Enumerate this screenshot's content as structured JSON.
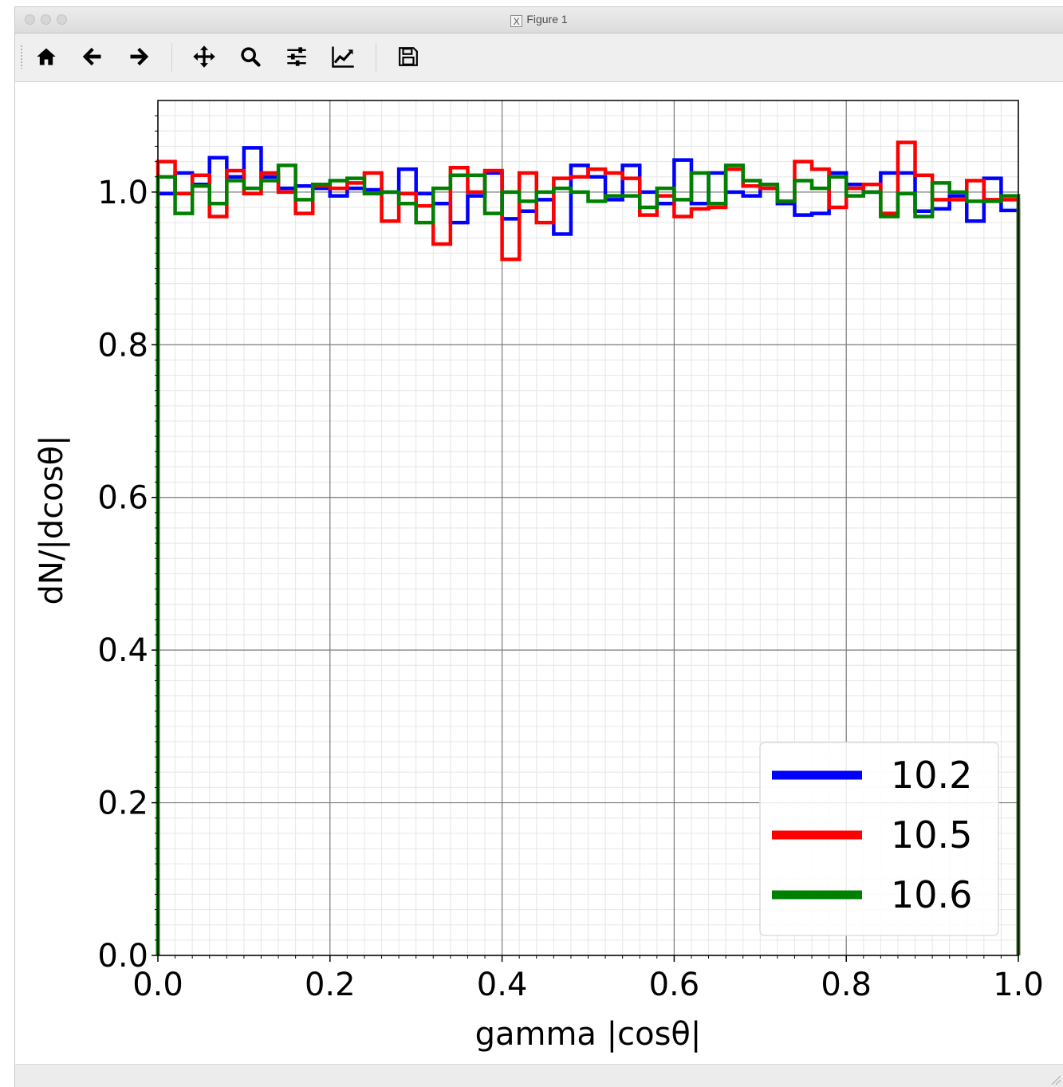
{
  "window": {
    "title": "Figure 1",
    "app_icon_glyph": "X"
  },
  "toolbar": {
    "buttons": [
      {
        "name": "home-button",
        "icon": "home-icon",
        "label": "Home"
      },
      {
        "name": "back-button",
        "icon": "arrow-left-icon",
        "label": "Back"
      },
      {
        "name": "forward-button",
        "icon": "arrow-right-icon",
        "label": "Forward"
      },
      {
        "name": "pan-button",
        "icon": "move-icon",
        "label": "Pan"
      },
      {
        "name": "zoom-button",
        "icon": "magnifier-icon",
        "label": "Zoom"
      },
      {
        "name": "subplots-button",
        "icon": "sliders-icon",
        "label": "Subplots"
      },
      {
        "name": "customize-button",
        "icon": "line-chart-icon",
        "label": "Customize"
      },
      {
        "name": "save-button",
        "icon": "floppy-disk-icon",
        "label": "Save"
      }
    ]
  },
  "chart_data": {
    "type": "line",
    "style": "step histogram",
    "title": "",
    "xlabel": "gamma |cosθ|",
    "ylabel": "dN/|dcosθ|",
    "xlim": [
      0.0,
      1.0
    ],
    "ylim": [
      0.0,
      1.12
    ],
    "xticks": [
      0.0,
      0.2,
      0.4,
      0.6,
      0.8,
      1.0
    ],
    "xtick_labels": [
      "0.0",
      "0.2",
      "0.4",
      "0.6",
      "0.8",
      "1.0"
    ],
    "yticks": [
      0.0,
      0.2,
      0.4,
      0.6,
      0.8,
      1.0
    ],
    "ytick_labels": [
      "0.0",
      "0.2",
      "0.4",
      "0.6",
      "0.8",
      "1.0"
    ],
    "grid": {
      "major": true,
      "minor": true
    },
    "legend_position": "lower-right",
    "bin_edges_start": 0.0,
    "bin_width": 0.02,
    "series": [
      {
        "name": "10.2",
        "color": "#0000ff",
        "values": [
          0.998,
          1.025,
          1.01,
          1.045,
          1.02,
          1.058,
          1.02,
          1.005,
          1.008,
          1.005,
          0.995,
          1.005,
          1.003,
          1.0,
          1.03,
          0.998,
          0.985,
          0.96,
          0.995,
          1.025,
          0.965,
          0.975,
          0.99,
          0.945,
          1.035,
          1.02,
          0.99,
          1.035,
          1.0,
          0.985,
          1.042,
          0.985,
          1.025,
          1.0,
          0.995,
          1.005,
          0.985,
          0.97,
          0.972,
          1.025,
          1.01,
          1.0,
          1.025,
          1.025,
          0.975,
          0.978,
          0.995,
          0.962,
          1.018,
          0.976
        ]
      },
      {
        "name": "10.5",
        "color": "#ff0000",
        "values": [
          1.04,
          0.998,
          1.022,
          0.968,
          1.028,
          0.998,
          1.025,
          1.0,
          0.972,
          1.008,
          1.005,
          1.012,
          1.025,
          0.962,
          0.998,
          0.982,
          0.932,
          1.032,
          1.0,
          1.028,
          0.912,
          1.025,
          0.96,
          1.018,
          1.02,
          1.03,
          1.025,
          1.018,
          0.97,
          0.995,
          0.968,
          0.978,
          0.98,
          1.03,
          1.008,
          1.005,
          0.988,
          1.04,
          1.03,
          0.98,
          1.005,
          1.01,
          0.972,
          1.065,
          1.022,
          0.99,
          0.99,
          1.015,
          0.99,
          0.99
        ]
      },
      {
        "name": "10.6",
        "color": "#008000",
        "values": [
          1.02,
          0.972,
          1.008,
          0.985,
          1.015,
          1.005,
          1.015,
          1.035,
          0.99,
          1.01,
          1.015,
          1.018,
          0.998,
          1.0,
          0.985,
          0.96,
          1.005,
          1.022,
          1.022,
          0.972,
          1.0,
          0.988,
          1.0,
          1.005,
          1.0,
          0.988,
          0.995,
          0.995,
          0.98,
          1.005,
          0.99,
          1.025,
          0.985,
          1.035,
          1.015,
          1.01,
          0.988,
          1.015,
          1.005,
          1.02,
          0.995,
          1.0,
          0.968,
          0.998,
          0.968,
          1.012,
          1.0,
          0.988,
          0.988,
          0.995
        ]
      }
    ]
  }
}
